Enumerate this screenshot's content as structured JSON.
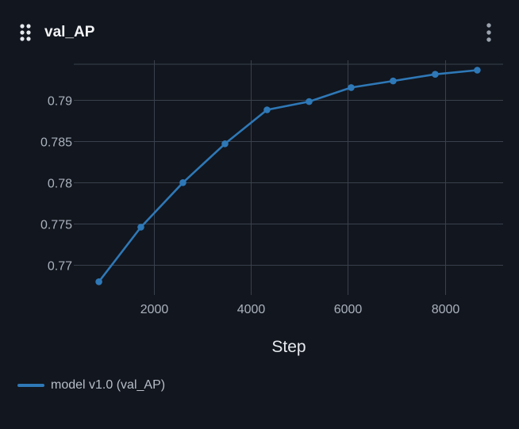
{
  "panel": {
    "title": "val_AP",
    "drag_icon": "drag-grid-icon",
    "menu_icon": "more-vertical-icon"
  },
  "colors": {
    "background": "#12161e",
    "grid": "#3a414c",
    "series": "#2e78b7"
  },
  "chart_data": {
    "type": "line",
    "title": "val_AP",
    "xlabel": "Step",
    "ylabel": "",
    "xlim": [
      350,
      9200
    ],
    "ylim": [
      0.7664,
      0.7948
    ],
    "x_ticks": [
      2000,
      4000,
      6000,
      8000
    ],
    "x_tick_labels": [
      "2000",
      "4000",
      "6000",
      "8000"
    ],
    "y_ticks": [
      0.77,
      0.775,
      0.78,
      0.785,
      0.79
    ],
    "y_tick_labels": [
      "0.77",
      "0.775",
      "0.78",
      "0.785",
      "0.79"
    ],
    "grid": true,
    "legend_position": "bottom-left",
    "series": [
      {
        "name": "model v1.0 (val_AP)",
        "color": "#2e78b7",
        "x": [
          867,
          1733,
          2600,
          3467,
          4333,
          5200,
          6067,
          6933,
          7800,
          8667
        ],
        "y": [
          0.768,
          0.7746,
          0.78,
          0.7847,
          0.7888,
          0.7898,
          0.7915,
          0.7923,
          0.7931,
          0.7936
        ]
      }
    ]
  }
}
